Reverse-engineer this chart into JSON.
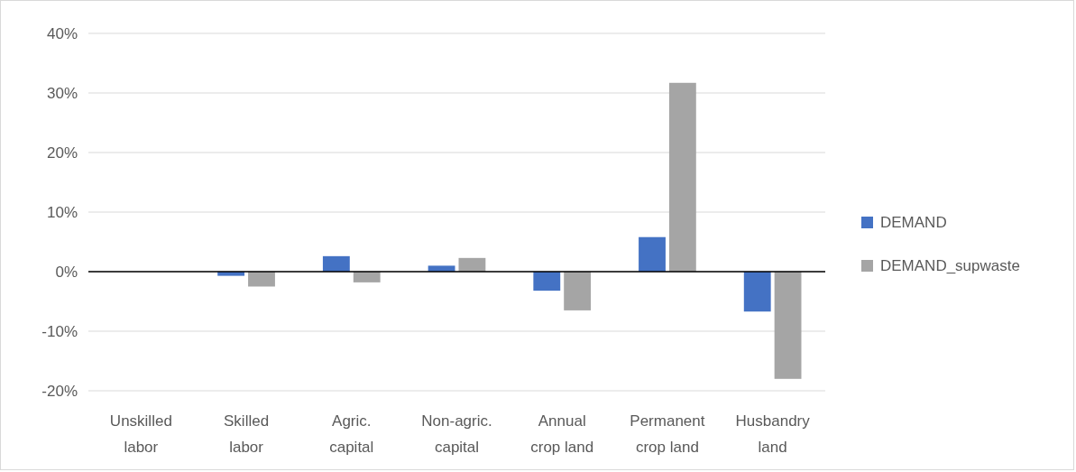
{
  "chart_data": {
    "type": "bar",
    "categories": [
      "Unskilled labor",
      "Skilled labor",
      "Agric. capital",
      "Non-agric. capital",
      "Annual crop land",
      "Permanent crop land",
      "Husbandry land"
    ],
    "series": [
      {
        "name": "DEMAND",
        "color": "#4472c4",
        "values": [
          0,
          -0.7,
          2.6,
          1.0,
          -3.2,
          5.8,
          -6.7
        ]
      },
      {
        "name": "DEMAND_supwaste",
        "color": "#a5a5a5",
        "values": [
          0,
          -2.5,
          -1.8,
          2.3,
          -6.5,
          31.7,
          -18.0
        ]
      }
    ],
    "ylim": [
      -20,
      40
    ],
    "yticks": [
      {
        "value": -20,
        "label": "-20%"
      },
      {
        "value": -10,
        "label": "-10%"
      },
      {
        "value": 0,
        "label": "0%"
      },
      {
        "value": 10,
        "label": "10%"
      },
      {
        "value": 20,
        "label": "20%"
      },
      {
        "value": 30,
        "label": "30%"
      },
      {
        "value": 40,
        "label": "40%"
      }
    ],
    "grid": "y",
    "legend": "right"
  }
}
